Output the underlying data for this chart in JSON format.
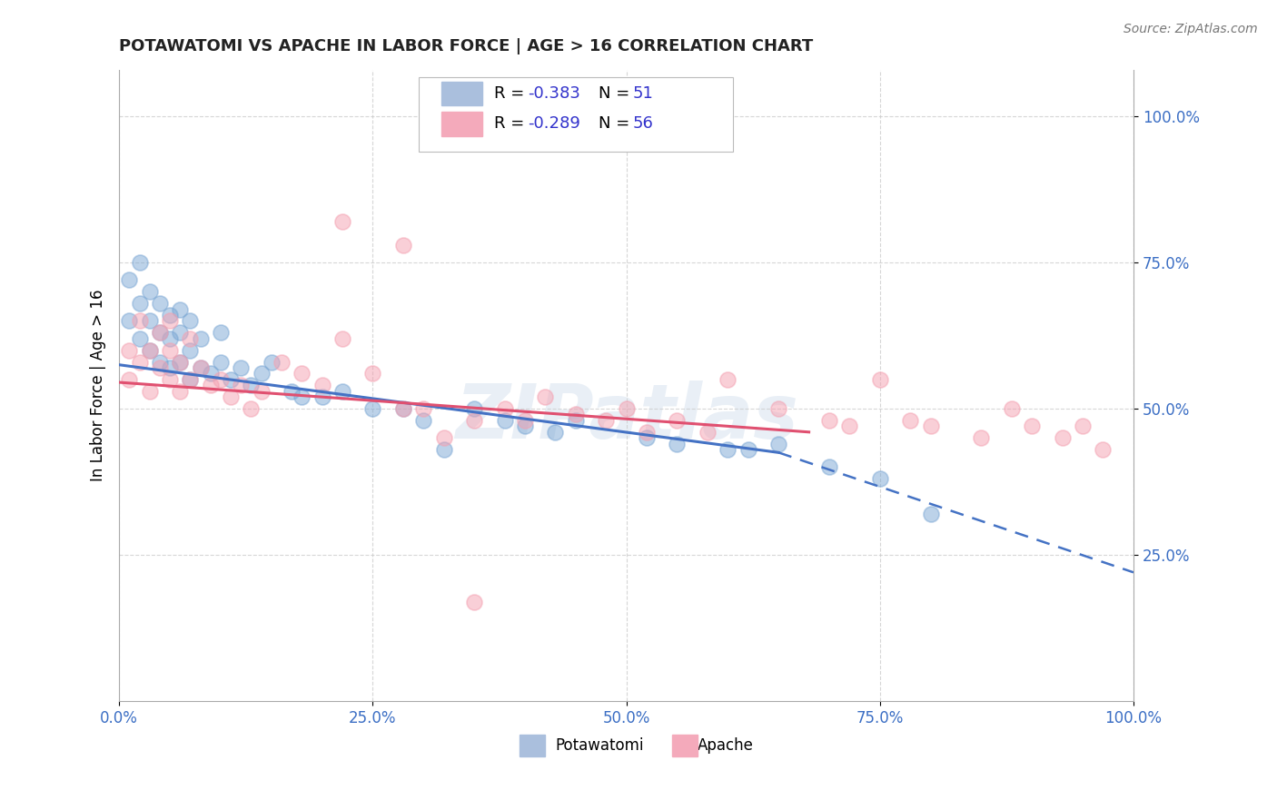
{
  "title": "POTAWATOMI VS APACHE IN LABOR FORCE | AGE > 16 CORRELATION CHART",
  "source_text": "Source: ZipAtlas.com",
  "ylabel": "In Labor Force | Age > 16",
  "xlim": [
    0.0,
    1.0
  ],
  "ylim": [
    0.0,
    1.08
  ],
  "xticks": [
    0.0,
    0.25,
    0.5,
    0.75,
    1.0
  ],
  "xticklabels": [
    "0.0%",
    "25.0%",
    "50.0%",
    "75.0%",
    "100.0%"
  ],
  "yticks": [
    0.25,
    0.5,
    0.75,
    1.0
  ],
  "yticklabels": [
    "25.0%",
    "50.0%",
    "75.0%",
    "100.0%"
  ],
  "potawatomi_R": -0.383,
  "potawatomi_N": 51,
  "apache_R": -0.289,
  "apache_N": 56,
  "potawatomi_color": "#7BA7D4",
  "apache_color": "#F4A0B0",
  "trend_potawatomi_color": "#4472C4",
  "trend_apache_color": "#E05070",
  "watermark": "ZIPatlas",
  "potawatomi_x": [
    0.01,
    0.01,
    0.02,
    0.02,
    0.02,
    0.03,
    0.03,
    0.03,
    0.04,
    0.04,
    0.04,
    0.05,
    0.05,
    0.05,
    0.06,
    0.06,
    0.06,
    0.07,
    0.07,
    0.07,
    0.08,
    0.08,
    0.09,
    0.1,
    0.1,
    0.11,
    0.12,
    0.13,
    0.14,
    0.15,
    0.17,
    0.18,
    0.2,
    0.22,
    0.25,
    0.28,
    0.3,
    0.32,
    0.35,
    0.38,
    0.4,
    0.43,
    0.45,
    0.52,
    0.55,
    0.6,
    0.62,
    0.65,
    0.7,
    0.75,
    0.8
  ],
  "potawatomi_y": [
    0.65,
    0.72,
    0.62,
    0.68,
    0.75,
    0.6,
    0.65,
    0.7,
    0.58,
    0.63,
    0.68,
    0.57,
    0.62,
    0.66,
    0.58,
    0.63,
    0.67,
    0.55,
    0.6,
    0.65,
    0.57,
    0.62,
    0.56,
    0.58,
    0.63,
    0.55,
    0.57,
    0.54,
    0.56,
    0.58,
    0.53,
    0.52,
    0.52,
    0.53,
    0.5,
    0.5,
    0.48,
    0.43,
    0.5,
    0.48,
    0.47,
    0.46,
    0.48,
    0.45,
    0.44,
    0.43,
    0.43,
    0.44,
    0.4,
    0.38,
    0.32
  ],
  "apache_x": [
    0.01,
    0.01,
    0.02,
    0.02,
    0.03,
    0.03,
    0.04,
    0.04,
    0.05,
    0.05,
    0.05,
    0.06,
    0.06,
    0.07,
    0.07,
    0.08,
    0.09,
    0.1,
    0.11,
    0.12,
    0.13,
    0.14,
    0.16,
    0.18,
    0.2,
    0.22,
    0.25,
    0.28,
    0.3,
    0.32,
    0.35,
    0.38,
    0.4,
    0.42,
    0.45,
    0.48,
    0.5,
    0.52,
    0.55,
    0.58,
    0.6,
    0.65,
    0.7,
    0.72,
    0.75,
    0.78,
    0.8,
    0.85,
    0.88,
    0.9,
    0.93,
    0.95,
    0.97,
    0.22,
    0.28,
    0.35
  ],
  "apache_y": [
    0.55,
    0.6,
    0.58,
    0.65,
    0.53,
    0.6,
    0.57,
    0.63,
    0.55,
    0.6,
    0.65,
    0.53,
    0.58,
    0.55,
    0.62,
    0.57,
    0.54,
    0.55,
    0.52,
    0.54,
    0.5,
    0.53,
    0.58,
    0.56,
    0.54,
    0.62,
    0.56,
    0.5,
    0.5,
    0.45,
    0.48,
    0.5,
    0.48,
    0.52,
    0.49,
    0.48,
    0.5,
    0.46,
    0.48,
    0.46,
    0.55,
    0.5,
    0.48,
    0.47,
    0.55,
    0.48,
    0.47,
    0.45,
    0.5,
    0.47,
    0.45,
    0.47,
    0.43,
    0.82,
    0.78,
    0.17
  ],
  "trend_pot_x_start": 0.0,
  "trend_pot_x_solid_end": 0.65,
  "trend_pot_x_end": 1.0,
  "trend_pot_y_start": 0.575,
  "trend_pot_y_solid_end": 0.425,
  "trend_pot_y_end": 0.22,
  "trend_apa_x_start": 0.0,
  "trend_apa_x_end": 0.68,
  "trend_apa_y_start": 0.545,
  "trend_apa_y_end": 0.46
}
